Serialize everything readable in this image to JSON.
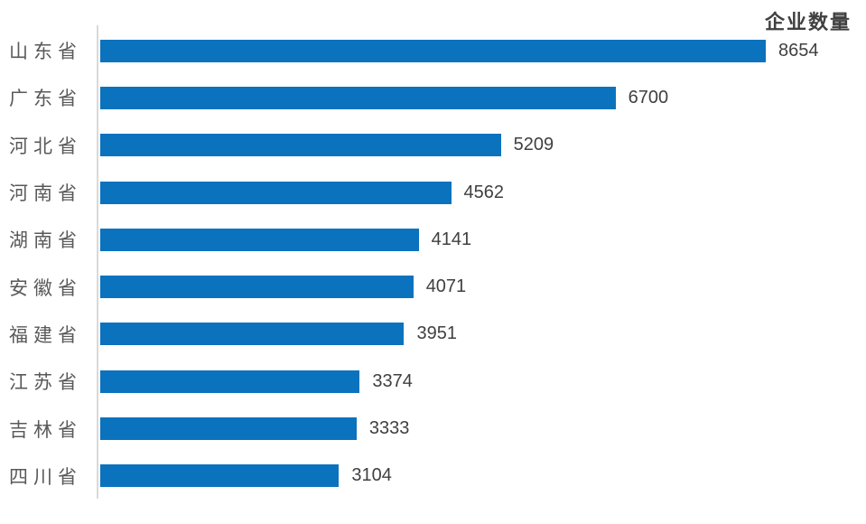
{
  "chart_data": {
    "type": "bar",
    "orientation": "horizontal",
    "title": "企业数量",
    "categories": [
      "山东省",
      "广东省",
      "河北省",
      "河南省",
      "湖南省",
      "安徽省",
      "福建省",
      "江苏省",
      "吉林省",
      "四川省"
    ],
    "values": [
      8654,
      6700,
      5209,
      4562,
      4141,
      4071,
      3951,
      3374,
      3333,
      3104
    ],
    "xlabel": "",
    "ylabel": "",
    "xlim": [
      0,
      8654
    ],
    "grid": false,
    "legend_position": "none",
    "data_labels": true,
    "bar_color": "#0b72be",
    "axis_line_color": "#d9d9d9",
    "category_label_color": "#595959",
    "value_label_color": "#404040",
    "title_color": "#404040"
  }
}
